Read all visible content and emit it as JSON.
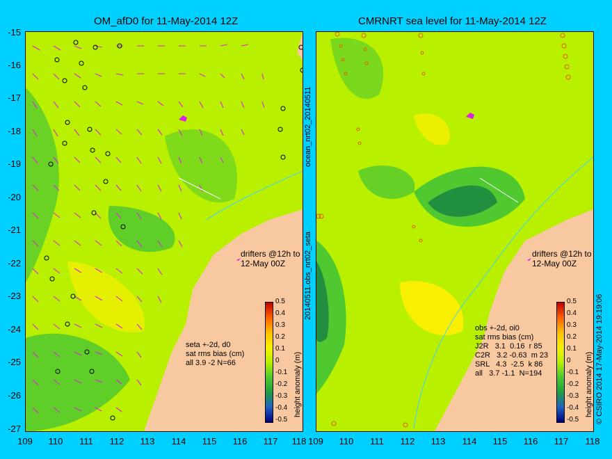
{
  "panels": [
    {
      "title": "OM_afD0 for 11-May-2014 12Z",
      "annotation": "seta +-2d, d0\nsat rms bias (cm)\nall 3.9 -2 N=66",
      "drifters": [
        "drifters @12h to",
        "12-May 00Z"
      ]
    },
    {
      "title": "CMRNRT sea level  for 11-May-2014 12Z",
      "annotation": "obs +-2d, oi0\nsat rms bias (cm)\nJ2R   3.1  0.16  r 85\nC2R   3.2 -0.63  m 23\nSRL   4.3  -2.5  k 86\nall   3.7 -1.1  N=194",
      "drifters": [
        "drifters @12h to",
        "12-May 00Z"
      ]
    }
  ],
  "y_ticks": [
    "-15",
    "-16",
    "-17",
    "-18",
    "-19",
    "-20",
    "-21",
    "-22",
    "-23",
    "-24",
    "-25",
    "-26",
    "-27"
  ],
  "x_ticks": [
    "109",
    "110",
    "111",
    "112",
    "113",
    "114",
    "115",
    "116",
    "117",
    "118"
  ],
  "colorbar": {
    "ticks": [
      "0.5",
      "0.4",
      "0.3",
      "0.2",
      "0.1",
      "0",
      "-0.1",
      "-0.2",
      "-0.3",
      "-0.4",
      "-0.5"
    ],
    "label": "height anomaly (m)"
  },
  "side_labels": {
    "top_vertical": "ocean_nrt02_20140511",
    "bottom_vertical": "20140511.obs_nrt02_seta",
    "credit": "© CSIRO 2014  17-May-2014 19:19:06"
  },
  "colors": {
    "background": "#00d0ff",
    "land": "#f8c8a0",
    "ocean_mid": "#b8f000",
    "ocean_pos": "#f8f000",
    "ocean_neg": "#50c830",
    "vectors": "#e020e0"
  }
}
